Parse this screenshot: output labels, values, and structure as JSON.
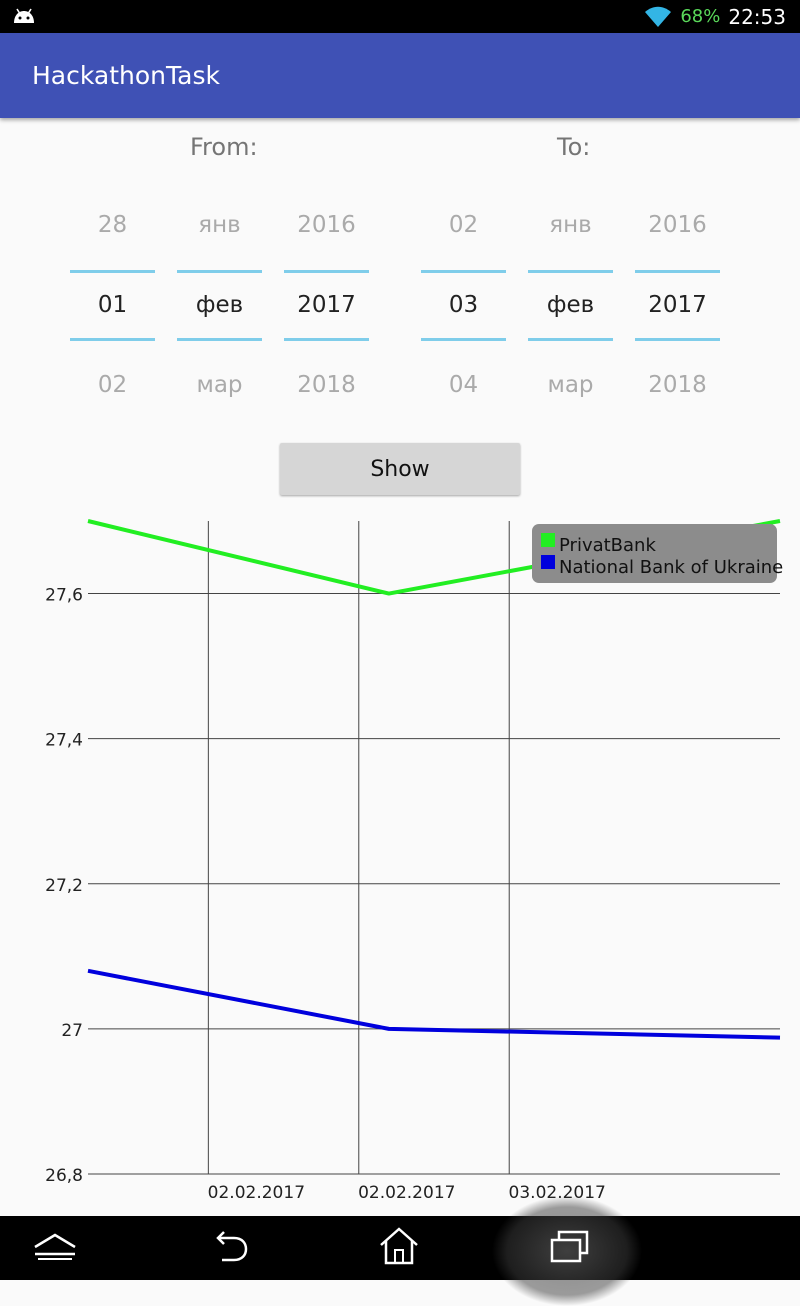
{
  "status_bar": {
    "battery": "68%",
    "time": "22:53",
    "icons": [
      "android-icon",
      "wifi-icon",
      "battery-icon"
    ]
  },
  "app_bar": {
    "title": "HackathonTask"
  },
  "from": {
    "label": "From:",
    "day": {
      "prev": "28",
      "current": "01",
      "next": "02"
    },
    "month": {
      "prev": "янв",
      "current": "фев",
      "next": "мар"
    },
    "year": {
      "prev": "2016",
      "current": "2017",
      "next": "2018"
    }
  },
  "to": {
    "label": "To:",
    "day": {
      "prev": "02",
      "current": "03",
      "next": "04"
    },
    "month": {
      "prev": "янв",
      "current": "фев",
      "next": "мар"
    },
    "year": {
      "prev": "2016",
      "current": "2017",
      "next": "2018"
    }
  },
  "show_button": {
    "label": "Show"
  },
  "chart_data": {
    "type": "line",
    "x": [
      0,
      1.5,
      3.45
    ],
    "y_ticks": [
      "27,6",
      "27,4",
      "27,2",
      "27",
      "26,8"
    ],
    "y_tick_values": [
      27.6,
      27.4,
      27.2,
      27.0,
      26.8
    ],
    "x_ticks": [
      "02.02.2017",
      "02.02.2017",
      "03.02.2017"
    ],
    "x_tick_values": [
      0.6,
      1.35,
      2.1
    ],
    "xlim": [
      0,
      3.45
    ],
    "ylim": [
      26.8,
      27.7
    ],
    "grid": true,
    "legend_position": "top-right",
    "series": [
      {
        "name": "PrivatBank",
        "color": "#22ee22",
        "values": [
          27.7,
          27.6,
          27.7
        ]
      },
      {
        "name": "National Bank of Ukraine",
        "color": "#0000dd",
        "values": [
          27.08,
          27.0,
          26.988
        ]
      }
    ]
  },
  "nav_bar": {
    "icons": [
      "up-chevron-icon",
      "back-icon",
      "home-icon",
      "recent-apps-icon"
    ]
  }
}
